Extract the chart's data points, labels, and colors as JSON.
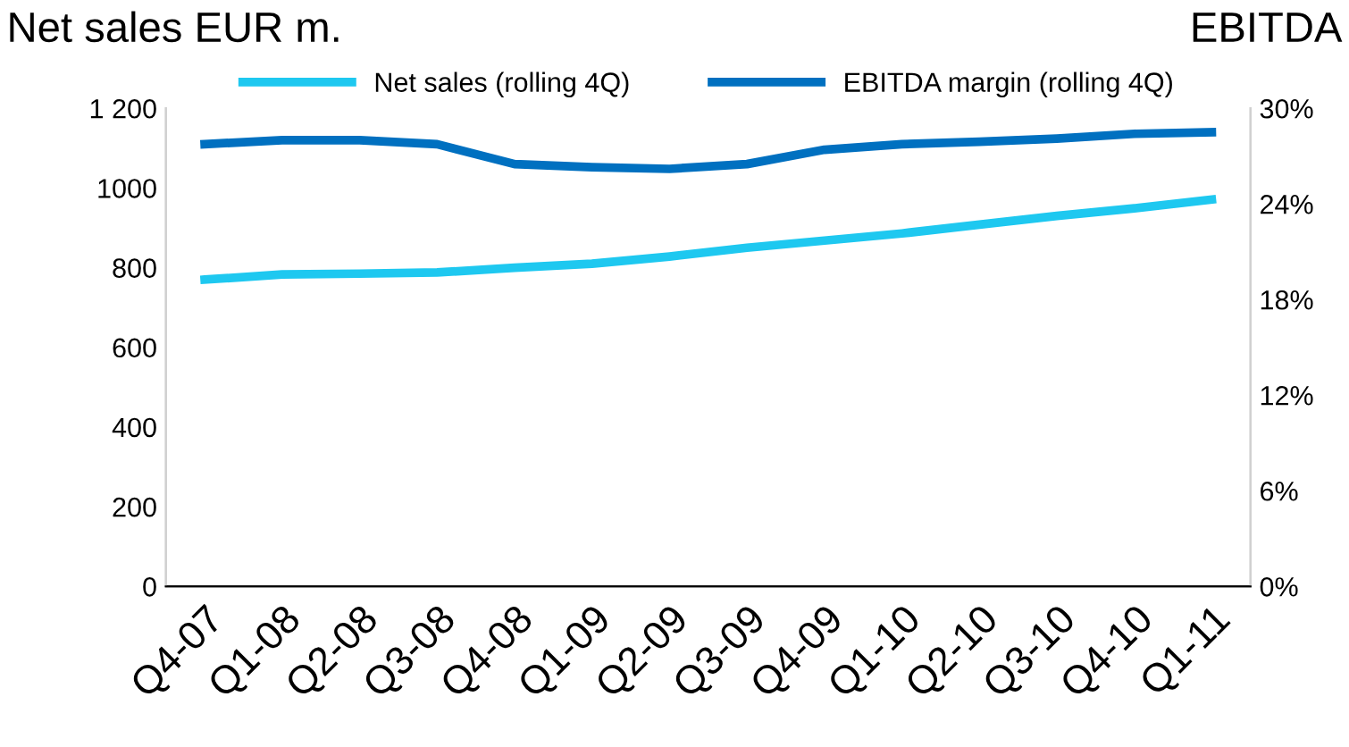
{
  "chart_data": {
    "type": "line",
    "ylabel": "Net sales EUR m.",
    "y2label": "EBITDA",
    "categories": [
      "Q4-07",
      "Q1-08",
      "Q2-08",
      "Q3-08",
      "Q4-08",
      "Q1-09",
      "Q2-09",
      "Q3-09",
      "Q4-09",
      "Q1-10",
      "Q2-10",
      "Q3-10",
      "Q4-10",
      "Q1-11"
    ],
    "series": [
      {
        "name": "Net sales (rolling 4Q)",
        "color": "#1ec8f0",
        "values": [
          770,
          783,
          785,
          788,
          800,
          810,
          828,
          850,
          868,
          886,
          908,
          930,
          949,
          971
        ]
      },
      {
        "name": "EBITDA margin (rolling 4Q)",
        "color": "#0070c0",
        "axis": "y2",
        "values": [
          27.75,
          28.0,
          28.0,
          27.75,
          26.5,
          26.3,
          26.2,
          26.5,
          27.4,
          27.75,
          27.9,
          28.1,
          28.4,
          28.5
        ]
      }
    ],
    "ylim": [
      0,
      1200
    ],
    "yticks": [
      0,
      200,
      400,
      600,
      800,
      1000,
      {
        "value": 1200,
        "label": "1 200"
      }
    ],
    "y2lim": [
      0,
      30
    ],
    "y2ticks": [
      {
        "value": 0,
        "label": "0%"
      },
      {
        "value": 6,
        "label": "6%"
      },
      {
        "value": 12,
        "label": "12%"
      },
      {
        "value": 18,
        "label": "18%"
      },
      {
        "value": 24,
        "label": "24%"
      },
      {
        "value": 30,
        "label": "30%"
      }
    ],
    "legend": "top",
    "grid": false,
    "marker": "none",
    "line_style": "solid"
  }
}
